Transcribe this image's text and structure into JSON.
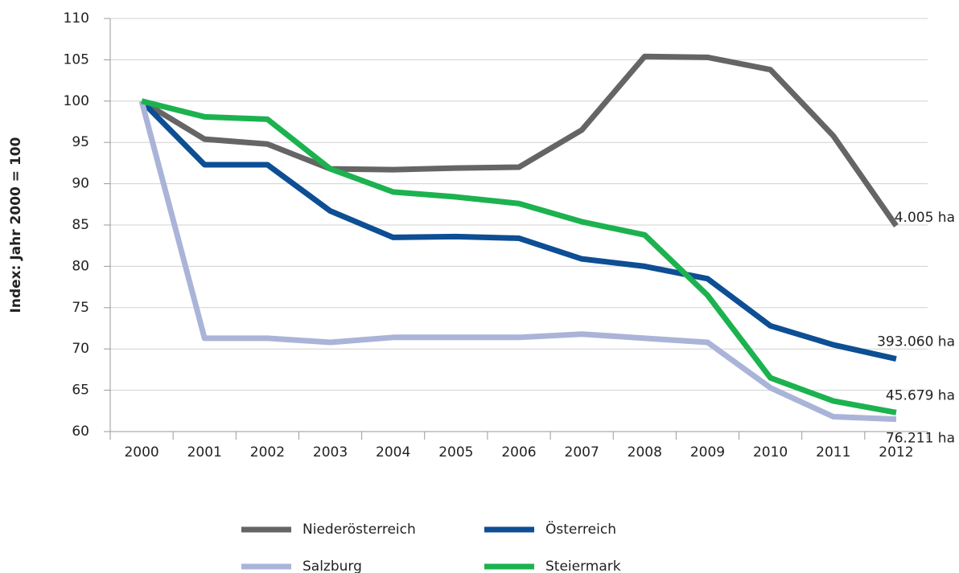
{
  "chart_data": {
    "type": "line",
    "y_axis_label": "Index: Jahr 2000 = 100",
    "categories": [
      "2000",
      "2001",
      "2002",
      "2003",
      "2004",
      "2005",
      "2006",
      "2007",
      "2008",
      "2009",
      "2010",
      "2011",
      "2012"
    ],
    "series": [
      {
        "name": "Niederösterreich",
        "color": "#656565",
        "values": [
          100,
          95.4,
          94.8,
          91.8,
          91.7,
          91.9,
          92.0,
          96.5,
          105.4,
          105.3,
          103.8,
          95.8,
          84.9
        ],
        "end_label": "4.005 ha"
      },
      {
        "name": "Österreich",
        "color": "#0d4e94",
        "values": [
          100,
          92.3,
          92.3,
          86.7,
          83.5,
          83.6,
          83.4,
          80.9,
          80.0,
          78.5,
          72.8,
          70.5,
          68.8
        ],
        "end_label": "393.060 ha"
      },
      {
        "name": "Salzburg",
        "color": "#aab4d8",
        "values": [
          100,
          71.3,
          71.3,
          70.8,
          71.4,
          71.4,
          71.4,
          71.8,
          71.3,
          70.8,
          65.3,
          61.8,
          61.5
        ],
        "end_label": "76.211 ha"
      },
      {
        "name": "Steiermark",
        "color": "#1cb24f",
        "values": [
          100,
          98.1,
          97.8,
          91.8,
          89.0,
          88.4,
          87.6,
          85.4,
          83.8,
          76.5,
          66.5,
          63.7,
          62.3
        ],
        "end_label": "45.679 ha"
      }
    ],
    "ylim": [
      60,
      110
    ],
    "yticks": [
      60,
      65,
      70,
      75,
      80,
      85,
      90,
      95,
      100,
      105,
      110
    ],
    "grid": true
  }
}
